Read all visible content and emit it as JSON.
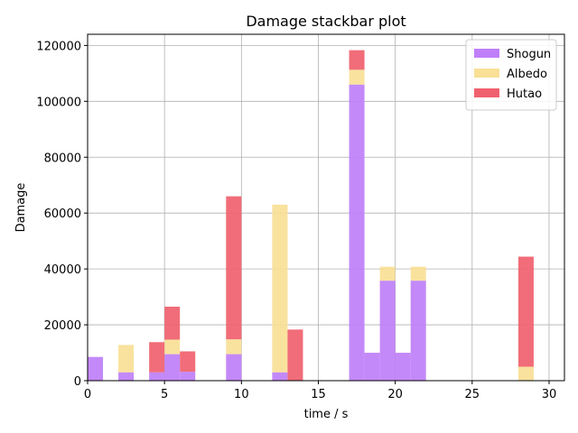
{
  "chart_data": {
    "type": "bar",
    "stacked": true,
    "title": "Damage stackbar plot",
    "xlabel": "time / s",
    "ylabel": "Damage",
    "xlim": [
      0,
      31
    ],
    "ylim": [
      0,
      124000
    ],
    "x_ticks": [
      0,
      5,
      10,
      15,
      20,
      25,
      30
    ],
    "y_ticks": [
      0,
      20000,
      40000,
      60000,
      80000,
      100000,
      120000
    ],
    "grid": true,
    "legend_position": "top-right",
    "bin_width": 1,
    "x": [
      0,
      2,
      4,
      5,
      6,
      9,
      12,
      13,
      17,
      18,
      19,
      20,
      21,
      28
    ],
    "series": [
      {
        "name": "Shogun",
        "color": "#bf7ff8",
        "values": [
          8500,
          3000,
          3000,
          9500,
          3200,
          9500,
          3000,
          0,
          106000,
          10000,
          35800,
          10000,
          35800,
          0
        ]
      },
      {
        "name": "Albedo",
        "color": "#f9e096",
        "values": [
          0,
          9800,
          0,
          5200,
          0,
          5300,
          60000,
          0,
          5300,
          0,
          5000,
          0,
          5000,
          5000
        ]
      },
      {
        "name": "Hutao",
        "color": "#f0616e",
        "values": [
          0,
          0,
          10800,
          11800,
          7300,
          51200,
          0,
          18300,
          7000,
          0,
          0,
          0,
          0,
          39400
        ]
      }
    ]
  }
}
